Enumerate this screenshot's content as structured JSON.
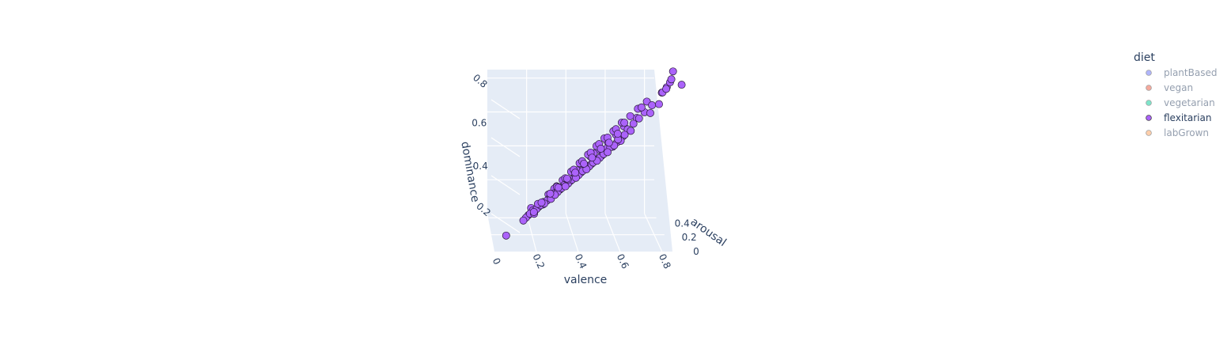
{
  "chart_data": {
    "type": "scatter",
    "subtype": "scatter3d",
    "x_axis": {
      "label": "valence",
      "ticks": [
        "0",
        "0.2",
        "0.4",
        "0.6",
        "0.8"
      ],
      "range": [
        0,
        0.85
      ]
    },
    "y_axis": {
      "label": "arousal",
      "ticks": [
        "0",
        "0.2",
        "0.4"
      ],
      "range": [
        0,
        0.45
      ]
    },
    "z_axis": {
      "label": "dominance",
      "ticks": [
        "0.2",
        "0.4",
        "0.6",
        "0.8"
      ],
      "range": [
        0,
        0.85
      ]
    },
    "grid": true,
    "legend": {
      "title": "diet",
      "position": "top-right",
      "entries": [
        {
          "name": "plantBased",
          "color": "#636efa",
          "visible": false
        },
        {
          "name": "vegan",
          "color": "#ef553b",
          "visible": false
        },
        {
          "name": "vegetarian",
          "color": "#00cc96",
          "visible": false
        },
        {
          "name": "flexitarian",
          "color": "#ab63fa",
          "visible": true
        },
        {
          "name": "labGrown",
          "color": "#ffa15a",
          "visible": false
        }
      ]
    },
    "series": [
      {
        "name": "flexitarian",
        "color": "#ab63fa",
        "points": [
          [
            0.03,
            0.05,
            0.04
          ],
          [
            0.8,
            0.21,
            0.78
          ],
          [
            0.79,
            0.23,
            0.74
          ],
          [
            0.78,
            0.26,
            0.72
          ],
          [
            0.77,
            0.2,
            0.7
          ],
          [
            0.76,
            0.3,
            0.69
          ],
          [
            0.75,
            0.22,
            0.68
          ],
          [
            0.74,
            0.27,
            0.67
          ],
          [
            0.83,
            0.31,
            0.7
          ],
          [
            0.73,
            0.25,
            0.62
          ],
          [
            0.7,
            0.22,
            0.62
          ],
          [
            0.69,
            0.24,
            0.58
          ],
          [
            0.66,
            0.26,
            0.58
          ],
          [
            0.64,
            0.21,
            0.56
          ],
          [
            0.62,
            0.28,
            0.55
          ],
          [
            0.61,
            0.24,
            0.53
          ],
          [
            0.6,
            0.22,
            0.5
          ],
          [
            0.58,
            0.26,
            0.5
          ],
          [
            0.57,
            0.23,
            0.48
          ],
          [
            0.56,
            0.25,
            0.47
          ],
          [
            0.55,
            0.24,
            0.45
          ],
          [
            0.54,
            0.22,
            0.46
          ],
          [
            0.53,
            0.26,
            0.44
          ],
          [
            0.52,
            0.23,
            0.43
          ],
          [
            0.51,
            0.25,
            0.42
          ],
          [
            0.5,
            0.24,
            0.42
          ],
          [
            0.49,
            0.22,
            0.4
          ],
          [
            0.48,
            0.26,
            0.41
          ],
          [
            0.47,
            0.23,
            0.39
          ],
          [
            0.46,
            0.25,
            0.38
          ],
          [
            0.45,
            0.24,
            0.37
          ],
          [
            0.44,
            0.22,
            0.36
          ],
          [
            0.43,
            0.26,
            0.36
          ],
          [
            0.42,
            0.23,
            0.35
          ],
          [
            0.41,
            0.25,
            0.34
          ],
          [
            0.4,
            0.24,
            0.33
          ],
          [
            0.39,
            0.22,
            0.32
          ],
          [
            0.38,
            0.26,
            0.32
          ],
          [
            0.37,
            0.23,
            0.31
          ],
          [
            0.36,
            0.25,
            0.3
          ],
          [
            0.35,
            0.24,
            0.29
          ],
          [
            0.34,
            0.22,
            0.28
          ],
          [
            0.33,
            0.26,
            0.28
          ],
          [
            0.32,
            0.23,
            0.27
          ],
          [
            0.31,
            0.25,
            0.26
          ],
          [
            0.3,
            0.24,
            0.25
          ],
          [
            0.29,
            0.22,
            0.24
          ],
          [
            0.28,
            0.26,
            0.24
          ],
          [
            0.27,
            0.23,
            0.23
          ],
          [
            0.26,
            0.25,
            0.22
          ],
          [
            0.25,
            0.24,
            0.21
          ],
          [
            0.24,
            0.22,
            0.2
          ],
          [
            0.23,
            0.26,
            0.2
          ],
          [
            0.22,
            0.23,
            0.19
          ],
          [
            0.21,
            0.25,
            0.18
          ],
          [
            0.2,
            0.24,
            0.17
          ],
          [
            0.19,
            0.22,
            0.16
          ],
          [
            0.18,
            0.26,
            0.16
          ],
          [
            0.17,
            0.23,
            0.15
          ],
          [
            0.16,
            0.25,
            0.14
          ],
          [
            0.15,
            0.24,
            0.13
          ],
          [
            0.14,
            0.22,
            0.12
          ],
          [
            0.13,
            0.26,
            0.12
          ],
          [
            0.12,
            0.23,
            0.11
          ],
          [
            0.11,
            0.25,
            0.1
          ],
          [
            0.1,
            0.24,
            0.09
          ],
          [
            0.09,
            0.22,
            0.08
          ],
          [
            0.56,
            0.28,
            0.51
          ],
          [
            0.54,
            0.2,
            0.49
          ],
          [
            0.52,
            0.29,
            0.47
          ],
          [
            0.5,
            0.19,
            0.45
          ],
          [
            0.48,
            0.28,
            0.44
          ],
          [
            0.46,
            0.2,
            0.42
          ],
          [
            0.44,
            0.29,
            0.4
          ],
          [
            0.42,
            0.19,
            0.38
          ],
          [
            0.4,
            0.28,
            0.37
          ],
          [
            0.38,
            0.2,
            0.35
          ],
          [
            0.36,
            0.29,
            0.33
          ],
          [
            0.34,
            0.19,
            0.31
          ],
          [
            0.32,
            0.28,
            0.3
          ],
          [
            0.3,
            0.2,
            0.28
          ],
          [
            0.28,
            0.29,
            0.26
          ],
          [
            0.26,
            0.19,
            0.24
          ],
          [
            0.24,
            0.28,
            0.23
          ],
          [
            0.22,
            0.2,
            0.21
          ],
          [
            0.2,
            0.29,
            0.19
          ],
          [
            0.18,
            0.19,
            0.17
          ],
          [
            0.45,
            0.21,
            0.44
          ],
          [
            0.43,
            0.27,
            0.42
          ],
          [
            0.41,
            0.21,
            0.4
          ],
          [
            0.39,
            0.27,
            0.38
          ],
          [
            0.37,
            0.21,
            0.36
          ],
          [
            0.35,
            0.27,
            0.34
          ],
          [
            0.33,
            0.21,
            0.32
          ],
          [
            0.31,
            0.27,
            0.3
          ],
          [
            0.29,
            0.21,
            0.28
          ],
          [
            0.27,
            0.27,
            0.26
          ],
          [
            0.25,
            0.21,
            0.24
          ],
          [
            0.23,
            0.27,
            0.22
          ],
          [
            0.47,
            0.25,
            0.46
          ],
          [
            0.49,
            0.21,
            0.47
          ],
          [
            0.51,
            0.27,
            0.49
          ],
          [
            0.53,
            0.21,
            0.51
          ],
          [
            0.55,
            0.27,
            0.53
          ],
          [
            0.57,
            0.21,
            0.54
          ],
          [
            0.59,
            0.27,
            0.56
          ],
          [
            0.63,
            0.24,
            0.6
          ],
          [
            0.65,
            0.22,
            0.61
          ],
          [
            0.67,
            0.26,
            0.63
          ],
          [
            0.42,
            0.25,
            0.39
          ],
          [
            0.38,
            0.23,
            0.34
          ],
          [
            0.34,
            0.25,
            0.31
          ],
          [
            0.3,
            0.23,
            0.27
          ],
          [
            0.26,
            0.25,
            0.23
          ],
          [
            0.22,
            0.23,
            0.18
          ],
          [
            0.18,
            0.25,
            0.15
          ],
          [
            0.14,
            0.23,
            0.11
          ],
          [
            0.12,
            0.27,
            0.13
          ],
          [
            0.16,
            0.21,
            0.16
          ]
        ]
      }
    ]
  }
}
